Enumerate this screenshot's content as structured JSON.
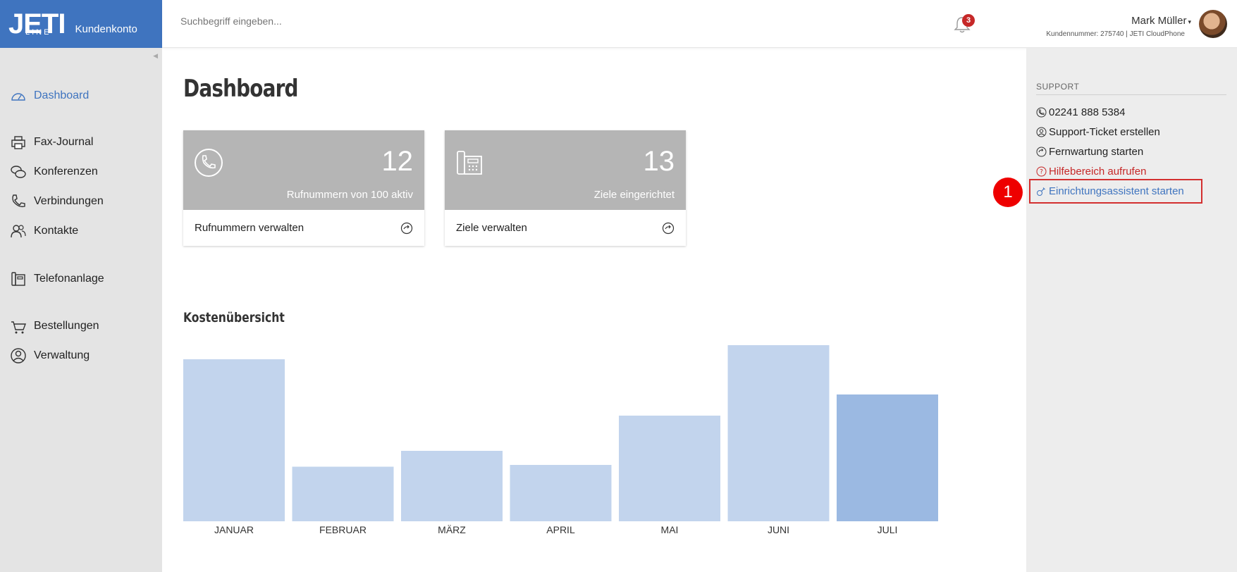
{
  "brand": {
    "logo_text": "JETI",
    "logo_subtext": "LINE",
    "portal_label": "Kundenkonto"
  },
  "header": {
    "search_placeholder": "Suchbegriff eingeben...",
    "notification_count": "3",
    "user_name": "Mark Müller",
    "user_meta": "Kundennummer: 275740 | JETI CloudPhone",
    "icons": {
      "notifications": "bell-icon",
      "user_menu": "caret-down-icon"
    }
  },
  "sidebar": {
    "items": [
      {
        "label": "Dashboard",
        "icon": "speedometer-icon",
        "active": true
      },
      {
        "label": "Fax-Journal",
        "icon": "printer-icon"
      },
      {
        "label": "Konferenzen",
        "icon": "chat-bubbles-icon"
      },
      {
        "label": "Verbindungen",
        "icon": "phone-icon"
      },
      {
        "label": "Kontakte",
        "icon": "users-icon"
      },
      {
        "label": "Telefonanlage",
        "icon": "desk-phone-icon"
      },
      {
        "label": "Bestellungen",
        "icon": "cart-icon"
      },
      {
        "label": "Verwaltung",
        "icon": "user-circle-icon"
      }
    ]
  },
  "main": {
    "title": "Dashboard",
    "cards": [
      {
        "number": "12",
        "description": "Rufnummern von 100 aktiv",
        "link": "Rufnummern verwalten",
        "icon": "phone-circle-icon"
      },
      {
        "number": "13",
        "description": "Ziele eingerichtet",
        "link": "Ziele verwalten",
        "icon": "desk-phone-icon"
      }
    ],
    "chart_title": "Kostenübersicht"
  },
  "chart_data": {
    "type": "bar",
    "title": "Kostenübersicht",
    "categories": [
      "JANUAR",
      "FEBRUAR",
      "MÄRZ",
      "APRIL",
      "MAI",
      "JUNI",
      "JULI"
    ],
    "values": [
      92,
      31,
      40,
      32,
      60,
      100,
      72
    ],
    "ylim": [
      0,
      100
    ],
    "highlighted_category": "JULI",
    "colors": {
      "bar": "#c2d4ed",
      "highlight": "#9bb9e2"
    },
    "grid": false,
    "axis_labels_shown": false
  },
  "support": {
    "heading": "SUPPORT",
    "items": [
      {
        "label": "02241 888 5384",
        "icon": "phone-icon",
        "style": "normal"
      },
      {
        "label": "Support-Ticket erstellen",
        "icon": "user-circle-icon",
        "style": "normal"
      },
      {
        "label": "Fernwartung starten",
        "icon": "refresh-icon",
        "style": "normal"
      },
      {
        "label": "Hilfebereich aufrufen",
        "icon": "question-circle-icon",
        "style": "red"
      },
      {
        "label": "Einrichtungsassistent starten",
        "icon": "wrench-icon",
        "style": "blue"
      }
    ]
  },
  "annotation": {
    "step": "1"
  },
  "colors": {
    "brand": "#3f74bf",
    "alert": "#c62828",
    "card_bg": "#b5b5b5"
  }
}
